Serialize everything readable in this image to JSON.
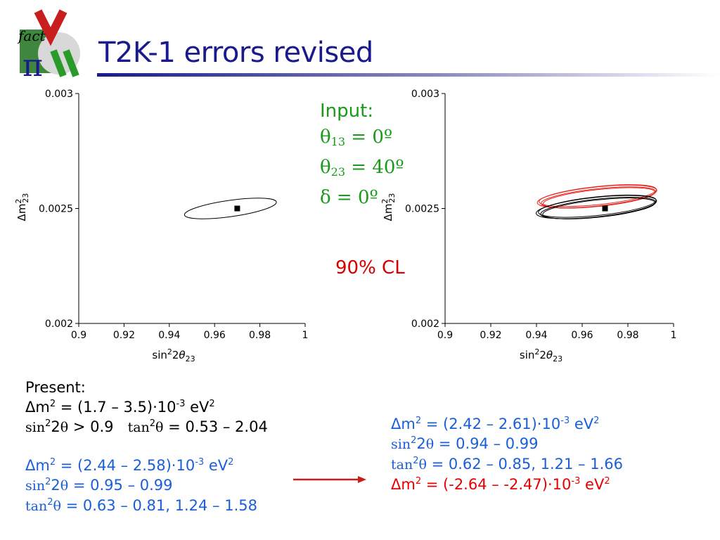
{
  "slide": {
    "title": "T2K-1 errors revised",
    "logo_text": "fact"
  },
  "colors": {
    "title": "#1a1a8c",
    "rule_start": "#1a1a8c",
    "input_text": "#1a9a1a",
    "cl_text": "#d40000",
    "blue_text": "#1a5fd6",
    "red_text": "#e60000",
    "contour_black": "#000000",
    "contour_red": "#e8221c"
  },
  "annotations": {
    "input_header": "Input:",
    "theta13": "θ13 = 0º",
    "theta23": "θ23 = 40º",
    "delta": "δ = 0º",
    "cl": "90% CL"
  },
  "present": {
    "header": "Present:",
    "dm2": "Δm2 = (1.7 – 3.5)·10-3 eV2",
    "sin_tan": "sin22θ > 0.9   tan2θ = 0.53 – 2.04"
  },
  "present_new": {
    "dm2": "Δm2 = (2.44 – 2.58)·10-3 eV2",
    "sin": "sin22θ = 0.95 – 0.99",
    "tan": "tan2θ = 0.63 – 0.81, 1.24 – 1.58"
  },
  "revised": {
    "dm2": "Δm2 = (2.42 – 2.61)·10-3 eV2",
    "sin": "sin22θ = 0.94 – 0.99",
    "tan": "tan2θ = 0.62 – 0.85, 1.21 – 1.66",
    "dm2_inverted": "Δm2 = (-2.64 – -2.47)·10-3 eV2"
  },
  "chart_data": [
    {
      "type": "scatter",
      "xlabel": "sin22θ23",
      "ylabel": "Δm223",
      "xlim": [
        0.9,
        1.0
      ],
      "ylim": [
        0.002,
        0.003
      ],
      "xticks": [
        "0.9",
        "0.92",
        "0.94",
        "0.96",
        "0.98",
        "1"
      ],
      "yticks": [
        "0.002",
        "0.0025",
        "0.003"
      ],
      "grid": false,
      "best_fit": {
        "x": 0.97,
        "y": 0.0025
      },
      "contours": [
        {
          "color": "black",
          "cx": 0.967,
          "cy": 0.0025,
          "rx": 0.0205,
          "ry": 3.55e-05,
          "tilt_deg": -8
        }
      ]
    },
    {
      "type": "scatter",
      "xlabel": "sin22θ23",
      "ylabel": "Δm223",
      "xlim": [
        0.9,
        1.0
      ],
      "ylim": [
        0.002,
        0.003
      ],
      "xticks": [
        "0.9",
        "0.92",
        "0.94",
        "0.96",
        "0.98",
        "1"
      ],
      "yticks": [
        "0.002",
        "0.0025",
        "0.003"
      ],
      "grid": false,
      "best_fit": {
        "x": 0.97,
        "y": 0.0025
      },
      "contours": [
        {
          "color": "red",
          "cx": 0.9665,
          "cy": 0.002552,
          "rx": 0.0263,
          "ry": 4.15e-05,
          "tilt_deg": -6
        },
        {
          "color": "red",
          "cx": 0.9668,
          "cy": 0.002556,
          "rx": 0.0258,
          "ry": 3.95e-05,
          "tilt_deg": -6
        },
        {
          "color": "red",
          "cx": 0.9671,
          "cy": 0.002548,
          "rx": 0.0252,
          "ry": 3.8e-05,
          "tilt_deg": -6
        },
        {
          "color": "red",
          "cx": 0.9674,
          "cy": 0.002546,
          "rx": 0.0246,
          "ry": 3.65e-05,
          "tilt_deg": -6
        },
        {
          "color": "black",
          "cx": 0.9662,
          "cy": 0.002506,
          "rx": 0.0265,
          "ry": 4.25e-05,
          "tilt_deg": -6
        },
        {
          "color": "black",
          "cx": 0.9666,
          "cy": 0.00251,
          "rx": 0.0259,
          "ry": 4.05e-05,
          "tilt_deg": -6
        },
        {
          "color": "black",
          "cx": 0.967,
          "cy": 0.002502,
          "rx": 0.0253,
          "ry": 3.9e-05,
          "tilt_deg": -6
        },
        {
          "color": "black",
          "cx": 0.9673,
          "cy": 0.0025,
          "rx": 0.0247,
          "ry": 3.75e-05,
          "tilt_deg": -6
        }
      ]
    }
  ]
}
